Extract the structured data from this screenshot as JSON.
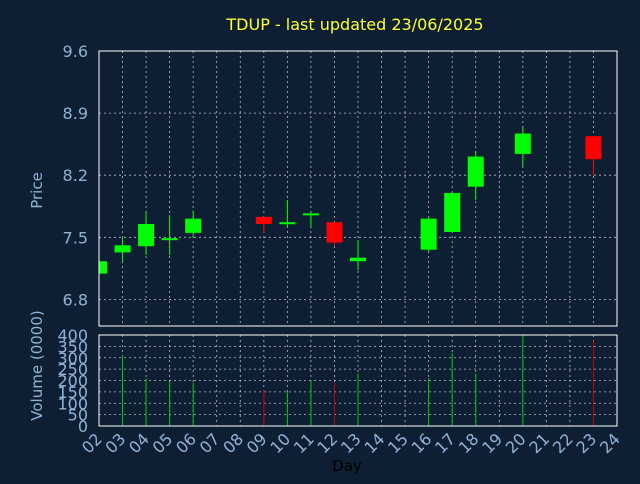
{
  "colors": {
    "background": "#0f1f33",
    "axis_text": "#8fb3d9",
    "title": "#ffff33",
    "grid": "#ffffff",
    "frame": "#ffffff",
    "up": "#00ff00",
    "down": "#ff0000",
    "volume_up": "#00c800",
    "volume_down": "#c80000",
    "axis_label": "#000000"
  },
  "chart_data": [
    {
      "type": "candlestick",
      "title": "TDUP - last updated 23/06/2025",
      "ylabel": "Price",
      "ylim": [
        6.5,
        9.6
      ],
      "yticks": [
        "9.6",
        "8.9",
        "8.2",
        "7.5",
        "6.8"
      ],
      "grid": true,
      "candles": [
        {
          "day": 2,
          "open": 7.09,
          "high": 7.25,
          "low": 7.09,
          "close": 7.23
        },
        {
          "day": 3,
          "open": 7.33,
          "high": 7.5,
          "low": 7.22,
          "close": 7.41
        },
        {
          "day": 4,
          "open": 7.4,
          "high": 7.78,
          "low": 7.3,
          "close": 7.65
        },
        {
          "day": 5,
          "open": 7.47,
          "high": 7.75,
          "low": 7.3,
          "close": 7.49
        },
        {
          "day": 6,
          "open": 7.55,
          "high": 7.8,
          "low": 7.5,
          "close": 7.71
        },
        {
          "day": 9,
          "open": 7.73,
          "high": 7.73,
          "low": 7.55,
          "close": 7.65
        },
        {
          "day": 10,
          "open": 7.65,
          "high": 7.92,
          "low": 7.62,
          "close": 7.67
        },
        {
          "day": 11,
          "open": 7.75,
          "high": 7.77,
          "low": 7.6,
          "close": 7.77
        },
        {
          "day": 12,
          "open": 7.67,
          "high": 7.67,
          "low": 7.4,
          "close": 7.44
        },
        {
          "day": 13,
          "open": 7.23,
          "high": 7.47,
          "low": 7.13,
          "close": 7.27
        },
        {
          "day": 16,
          "open": 7.36,
          "high": 7.74,
          "low": 7.33,
          "close": 7.71
        },
        {
          "day": 17,
          "open": 7.56,
          "high": 8.0,
          "low": 7.55,
          "close": 8.0
        },
        {
          "day": 18,
          "open": 8.07,
          "high": 8.47,
          "low": 7.92,
          "close": 8.41
        },
        {
          "day": 20,
          "open": 8.44,
          "high": 8.74,
          "low": 8.3,
          "close": 8.67
        },
        {
          "day": 23,
          "open": 8.64,
          "high": 8.64,
          "low": 8.2,
          "close": 8.38
        }
      ]
    },
    {
      "type": "bar",
      "ylabel": "Volume (0000)",
      "xlabel": "Day",
      "ylim": [
        0,
        400
      ],
      "yticks": [
        "0",
        "50",
        "100",
        "150",
        "200",
        "250",
        "300",
        "350",
        "400"
      ],
      "categories": [
        "02",
        "03",
        "04",
        "05",
        "06",
        "07",
        "08",
        "09",
        "10",
        "11",
        "12",
        "13",
        "14",
        "15",
        "16",
        "17",
        "18",
        "19",
        "20",
        "21",
        "22",
        "23",
        "24"
      ],
      "grid": true,
      "bars": [
        {
          "day": 3,
          "value": 310,
          "direction": "up"
        },
        {
          "day": 4,
          "value": 210,
          "direction": "up"
        },
        {
          "day": 5,
          "value": 195,
          "direction": "up"
        },
        {
          "day": 6,
          "value": 190,
          "direction": "up"
        },
        {
          "day": 9,
          "value": 160,
          "direction": "down"
        },
        {
          "day": 10,
          "value": 150,
          "direction": "up"
        },
        {
          "day": 11,
          "value": 200,
          "direction": "up"
        },
        {
          "day": 12,
          "value": 190,
          "direction": "down"
        },
        {
          "day": 13,
          "value": 230,
          "direction": "up"
        },
        {
          "day": 16,
          "value": 210,
          "direction": "up"
        },
        {
          "day": 17,
          "value": 320,
          "direction": "up"
        },
        {
          "day": 18,
          "value": 230,
          "direction": "up"
        },
        {
          "day": 20,
          "value": 400,
          "direction": "up"
        },
        {
          "day": 23,
          "value": 375,
          "direction": "down"
        }
      ]
    }
  ]
}
